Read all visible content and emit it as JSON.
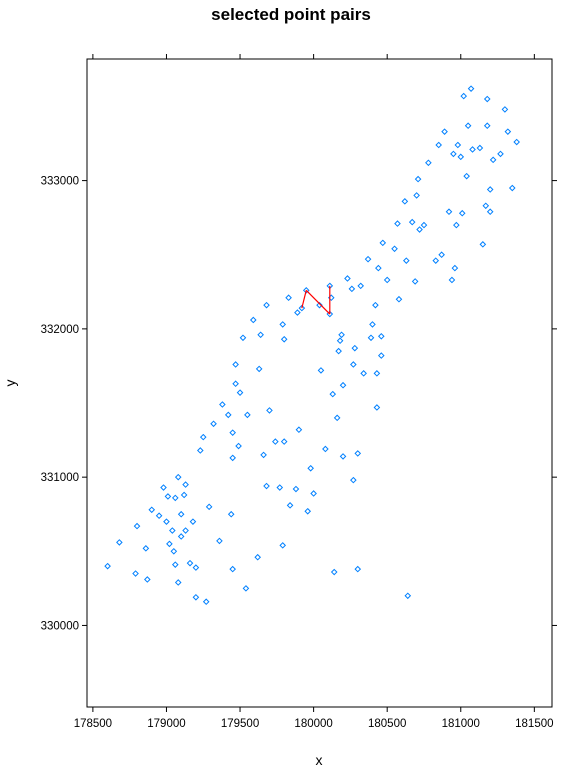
{
  "chart_data": {
    "type": "scatter",
    "title": "selected point pairs",
    "xlabel": "x",
    "ylabel": "y",
    "xlim": [
      178460,
      181620
    ],
    "ylim": [
      329450,
      333820
    ],
    "xticks": [
      178500,
      179000,
      179500,
      180000,
      180500,
      181000,
      181500
    ],
    "yticks": [
      330000,
      331000,
      332000,
      333000
    ],
    "tick_labels_x": [
      "178500",
      "179000",
      "179500",
      "180000",
      "180500",
      "181000",
      "181500"
    ],
    "tick_labels_y": [
      "330000",
      "331000",
      "332000",
      "333000"
    ],
    "grid": false,
    "point_color": "#0080ff",
    "line_color": "#ff0000",
    "points": [
      [
        178600,
        330400
      ],
      [
        178680,
        330560
      ],
      [
        178790,
        330350
      ],
      [
        178800,
        330670
      ],
      [
        178860,
        330520
      ],
      [
        178870,
        330310
      ],
      [
        178900,
        330780
      ],
      [
        178950,
        330740
      ],
      [
        178980,
        330930
      ],
      [
        179000,
        330700
      ],
      [
        179010,
        330870
      ],
      [
        179020,
        330550
      ],
      [
        179040,
        330640
      ],
      [
        179050,
        330500
      ],
      [
        179060,
        330860
      ],
      [
        179060,
        330410
      ],
      [
        179080,
        331000
      ],
      [
        179080,
        330290
      ],
      [
        179100,
        330750
      ],
      [
        179100,
        330600
      ],
      [
        179120,
        330880
      ],
      [
        179130,
        330640
      ],
      [
        179130,
        330950
      ],
      [
        179160,
        330420
      ],
      [
        179180,
        330700
      ],
      [
        179200,
        330190
      ],
      [
        179200,
        330390
      ],
      [
        179230,
        331180
      ],
      [
        179250,
        331270
      ],
      [
        179270,
        330160
      ],
      [
        179290,
        330800
      ],
      [
        179320,
        331360
      ],
      [
        179360,
        330570
      ],
      [
        179380,
        331490
      ],
      [
        179420,
        331420
      ],
      [
        179440,
        330750
      ],
      [
        179450,
        331300
      ],
      [
        179450,
        331130
      ],
      [
        179450,
        330380
      ],
      [
        179470,
        331760
      ],
      [
        179470,
        331630
      ],
      [
        179490,
        331210
      ],
      [
        179500,
        331570
      ],
      [
        179520,
        331940
      ],
      [
        179540,
        330250
      ],
      [
        179550,
        331420
      ],
      [
        179590,
        332060
      ],
      [
        179620,
        330460
      ],
      [
        179630,
        331730
      ],
      [
        179640,
        331960
      ],
      [
        179660,
        331150
      ],
      [
        179680,
        332160
      ],
      [
        179680,
        330940
      ],
      [
        179700,
        331450
      ],
      [
        179740,
        331240
      ],
      [
        179770,
        330930
      ],
      [
        179790,
        330540
      ],
      [
        179790,
        332030
      ],
      [
        179800,
        331930
      ],
      [
        179800,
        331240
      ],
      [
        179830,
        332210
      ],
      [
        179840,
        330810
      ],
      [
        179880,
        330920
      ],
      [
        179890,
        332110
      ],
      [
        179900,
        331320
      ],
      [
        179920,
        332140
      ],
      [
        179950,
        332260
      ],
      [
        179960,
        330770
      ],
      [
        179980,
        331060
      ],
      [
        180000,
        330890
      ],
      [
        180040,
        332160
      ],
      [
        180050,
        331720
      ],
      [
        180080,
        331190
      ],
      [
        180110,
        332290
      ],
      [
        180110,
        332100
      ],
      [
        180120,
        332210
      ],
      [
        180130,
        331560
      ],
      [
        180140,
        330360
      ],
      [
        180160,
        331400
      ],
      [
        180170,
        331850
      ],
      [
        180180,
        331920
      ],
      [
        180190,
        331960
      ],
      [
        180200,
        331620
      ],
      [
        180200,
        331140
      ],
      [
        180230,
        332340
      ],
      [
        180260,
        332270
      ],
      [
        180270,
        331760
      ],
      [
        180270,
        330980
      ],
      [
        180280,
        331870
      ],
      [
        180300,
        331160
      ],
      [
        180300,
        330380
      ],
      [
        180320,
        332290
      ],
      [
        180340,
        331700
      ],
      [
        180370,
        332470
      ],
      [
        180390,
        331940
      ],
      [
        180400,
        332030
      ],
      [
        180420,
        332160
      ],
      [
        180430,
        331470
      ],
      [
        180430,
        331700
      ],
      [
        180440,
        332410
      ],
      [
        180460,
        331950
      ],
      [
        180460,
        331820
      ],
      [
        180470,
        332580
      ],
      [
        180500,
        332330
      ],
      [
        180550,
        332540
      ],
      [
        180570,
        332710
      ],
      [
        180580,
        332200
      ],
      [
        180620,
        332860
      ],
      [
        180630,
        332460
      ],
      [
        180640,
        330200
      ],
      [
        180670,
        332720
      ],
      [
        180690,
        332320
      ],
      [
        180700,
        332900
      ],
      [
        180710,
        333010
      ],
      [
        180720,
        332670
      ],
      [
        180750,
        332700
      ],
      [
        180780,
        333120
      ],
      [
        180830,
        332460
      ],
      [
        180850,
        333240
      ],
      [
        180870,
        332500
      ],
      [
        180890,
        333330
      ],
      [
        180920,
        332790
      ],
      [
        180940,
        332330
      ],
      [
        180950,
        333180
      ],
      [
        180960,
        332410
      ],
      [
        180970,
        332700
      ],
      [
        180980,
        333240
      ],
      [
        181000,
        333160
      ],
      [
        181010,
        332780
      ],
      [
        181020,
        333570
      ],
      [
        181040,
        333030
      ],
      [
        181050,
        333370
      ],
      [
        181070,
        333620
      ],
      [
        181080,
        333210
      ],
      [
        181130,
        333220
      ],
      [
        181150,
        332570
      ],
      [
        181170,
        332830
      ],
      [
        181180,
        333370
      ],
      [
        181180,
        333550
      ],
      [
        181200,
        332940
      ],
      [
        181200,
        332790
      ],
      [
        181220,
        333140
      ],
      [
        181270,
        333180
      ],
      [
        181300,
        333480
      ],
      [
        181320,
        333330
      ],
      [
        181350,
        332950
      ],
      [
        181380,
        333260
      ]
    ],
    "selected_pairs": [
      [
        [
          179920,
          332140
        ],
        [
          179950,
          332260
        ]
      ],
      [
        [
          179950,
          332260
        ],
        [
          180110,
          332100
        ]
      ],
      [
        [
          180110,
          332100
        ],
        [
          180110,
          332290
        ]
      ]
    ]
  }
}
